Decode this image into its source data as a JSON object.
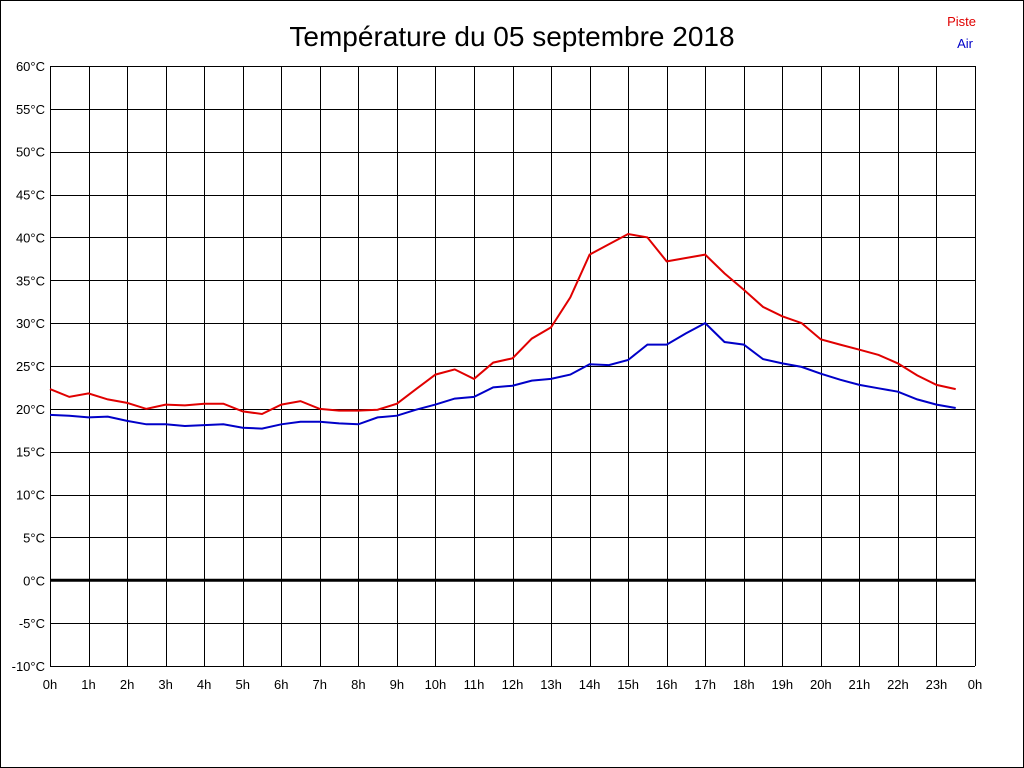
{
  "chart_data": {
    "type": "line",
    "title": "Température du 05 septembre 2018",
    "xlabel": "",
    "ylabel": "",
    "x_tick_labels": [
      "0h",
      "1h",
      "2h",
      "3h",
      "4h",
      "5h",
      "6h",
      "7h",
      "8h",
      "9h",
      "10h",
      "11h",
      "12h",
      "13h",
      "14h",
      "15h",
      "16h",
      "17h",
      "18h",
      "19h",
      "20h",
      "21h",
      "22h",
      "23h",
      "0h"
    ],
    "y_tick_labels": [
      "60°C",
      "55°C",
      "50°C",
      "45°C",
      "40°C",
      "35°C",
      "30°C",
      "25°C",
      "20°C",
      "15°C",
      "10°C",
      "5°C",
      "0°C",
      "-5°C",
      "-10°C"
    ],
    "xlim": [
      0,
      24
    ],
    "ylim": [
      -10,
      60
    ],
    "y_ticks": [
      60,
      55,
      50,
      45,
      40,
      35,
      30,
      25,
      20,
      15,
      10,
      5,
      0,
      -5,
      -10
    ],
    "grid": true,
    "zero_line": true,
    "legend_position": "top-right",
    "x": [
      0,
      0.5,
      1,
      1.5,
      2,
      2.5,
      3,
      3.5,
      4,
      4.5,
      5,
      5.5,
      6,
      6.5,
      7,
      7.5,
      8,
      8.5,
      9,
      9.5,
      10,
      10.5,
      11,
      11.5,
      12,
      12.5,
      13,
      13.5,
      14,
      14.5,
      15,
      15.5,
      16,
      16.5,
      17,
      17.5,
      18,
      18.5,
      19,
      19.5,
      20,
      20.5,
      21,
      21.5,
      22,
      22.5,
      23,
      23.5
    ],
    "series": [
      {
        "name": "Piste",
        "color": "#e00000",
        "values": [
          22.3,
          21.4,
          21.8,
          21.1,
          20.7,
          20.0,
          20.5,
          20.4,
          20.6,
          20.6,
          19.7,
          19.4,
          20.5,
          20.9,
          20.0,
          19.8,
          19.8,
          19.9,
          20.6,
          22.3,
          24.0,
          24.6,
          23.5,
          25.4,
          25.9,
          28.2,
          29.5,
          33.0,
          38.0,
          39.2,
          40.4,
          40.0,
          37.2,
          37.6,
          38.0,
          35.8,
          33.9,
          31.9,
          30.8,
          30.0,
          28.1,
          27.5,
          26.9,
          26.3,
          25.3,
          23.9,
          22.8,
          22.3
        ]
      },
      {
        "name": "Air",
        "color": "#0000c8",
        "values": [
          19.3,
          19.2,
          19.0,
          19.1,
          18.6,
          18.2,
          18.2,
          18.0,
          18.1,
          18.2,
          17.8,
          17.7,
          18.2,
          18.5,
          18.5,
          18.3,
          18.2,
          19.0,
          19.2,
          19.9,
          20.5,
          21.2,
          21.4,
          22.5,
          22.7,
          23.3,
          23.5,
          24.0,
          25.2,
          25.1,
          25.7,
          27.5,
          27.5,
          28.8,
          30.0,
          27.8,
          27.5,
          25.8,
          25.3,
          24.9,
          24.1,
          23.4,
          22.8,
          22.4,
          22.0,
          21.1,
          20.5,
          20.1
        ]
      }
    ]
  }
}
